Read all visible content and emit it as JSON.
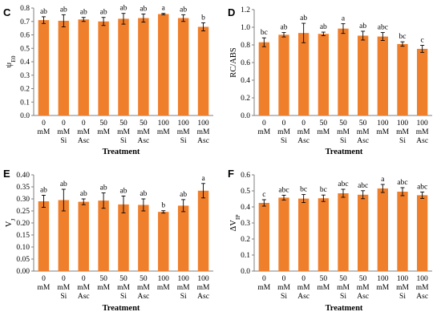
{
  "chart_data": [
    {
      "type": "bar",
      "panel": "C",
      "ylabel": "ψ",
      "ylabel_sub": "E0",
      "xlabel": "Treatment",
      "ylim": [
        0,
        0.8
      ],
      "yticks": [
        0,
        0.1,
        0.2,
        0.3,
        0.4,
        0.5,
        0.6,
        0.7,
        0.8
      ],
      "ytick_labels": [
        "0.0",
        "0.1",
        "0.2",
        "0.3",
        "0.4",
        "0.5",
        "0.6",
        "0.7",
        "0.8"
      ],
      "categories": [
        [
          "0",
          "mM"
        ],
        [
          "0",
          "mM",
          "Si"
        ],
        [
          "0",
          "mM",
          "Asc"
        ],
        [
          "50",
          "mM"
        ],
        [
          "50",
          "mM",
          "Si"
        ],
        [
          "50",
          "mM",
          "Asc"
        ],
        [
          "100",
          "mM"
        ],
        [
          "100",
          "mM",
          "Si"
        ],
        [
          "100",
          "mM",
          "Asc"
        ]
      ],
      "values": [
        0.71,
        0.705,
        0.715,
        0.7,
        0.72,
        0.725,
        0.755,
        0.725,
        0.66
      ],
      "errors": [
        0.025,
        0.045,
        0.015,
        0.03,
        0.04,
        0.03,
        0.005,
        0.025,
        0.03
      ],
      "letters": [
        "ab",
        "ab",
        "ab",
        "ab",
        "ab",
        "ab",
        "a",
        "ab",
        "b"
      ],
      "bar_color": "#f07f2c"
    },
    {
      "type": "bar",
      "panel": "D",
      "ylabel": "RC/ABS",
      "xlabel": "Treatment",
      "ylim": [
        0,
        1.2
      ],
      "yticks": [
        0,
        0.2,
        0.4,
        0.6,
        0.8,
        1.0,
        1.2
      ],
      "ytick_labels": [
        "0.0",
        "0.2",
        "0.4",
        "0.6",
        "0.8",
        "1.0",
        "1.2"
      ],
      "categories": [
        [
          "0",
          "mM"
        ],
        [
          "0",
          "mM",
          "Si"
        ],
        [
          "0",
          "mM",
          "Asc"
        ],
        [
          "50",
          "mM"
        ],
        [
          "50",
          "mM",
          "Si"
        ],
        [
          "50",
          "mM",
          "Asc"
        ],
        [
          "100",
          "mM"
        ],
        [
          "100",
          "mM",
          "Si"
        ],
        [
          "100",
          "mM",
          "Asc"
        ]
      ],
      "values": [
        0.83,
        0.915,
        0.935,
        0.925,
        0.985,
        0.905,
        0.895,
        0.81,
        0.755
      ],
      "errors": [
        0.05,
        0.025,
        0.11,
        0.02,
        0.055,
        0.05,
        0.045,
        0.025,
        0.04
      ],
      "letters": [
        "bc",
        "ab",
        "ab",
        "ab",
        "a",
        "ab",
        "abc",
        "bc",
        "c"
      ],
      "bar_color": "#f07f2c"
    },
    {
      "type": "bar",
      "panel": "E",
      "ylabel": "V",
      "ylabel_sub": "J",
      "xlabel": "Treatment",
      "ylim": [
        0,
        0.4
      ],
      "yticks": [
        0,
        0.05,
        0.1,
        0.15,
        0.2,
        0.25,
        0.3,
        0.35,
        0.4
      ],
      "ytick_labels": [
        "0.00",
        "0.05",
        "0.10",
        "0.15",
        "0.20",
        "0.25",
        "0.30",
        "0.35",
        "0.40"
      ],
      "categories": [
        [
          "0",
          "mM"
        ],
        [
          "0",
          "mM",
          "Si"
        ],
        [
          "0",
          "mM",
          "Asc"
        ],
        [
          "50",
          "mM"
        ],
        [
          "50",
          "mM",
          "Si"
        ],
        [
          "50",
          "mM",
          "Asc"
        ],
        [
          "100",
          "mM"
        ],
        [
          "100",
          "mM",
          "Si"
        ],
        [
          "100",
          "mM",
          "Asc"
        ]
      ],
      "values": [
        0.29,
        0.295,
        0.288,
        0.293,
        0.277,
        0.275,
        0.246,
        0.272,
        0.334
      ],
      "errors": [
        0.025,
        0.045,
        0.012,
        0.032,
        0.035,
        0.025,
        0.005,
        0.025,
        0.03
      ],
      "letters": [
        "ab",
        "ab",
        "ab",
        "ab",
        "ab",
        "ab",
        "b",
        "ab",
        "a"
      ],
      "bar_color": "#f07f2c"
    },
    {
      "type": "bar",
      "panel": "F",
      "ylabel": "ΔV",
      "ylabel_sub": "IP",
      "xlabel": "Treatment",
      "ylim": [
        0,
        0.6
      ],
      "yticks": [
        0,
        0.1,
        0.2,
        0.3,
        0.4,
        0.5,
        0.6
      ],
      "ytick_labels": [
        "0.0",
        "0.1",
        "0.2",
        "0.3",
        "0.4",
        "0.5",
        "0.6"
      ],
      "categories": [
        [
          "0",
          "mM"
        ],
        [
          "0",
          "mM",
          "Si"
        ],
        [
          "0",
          "mM",
          "Asc"
        ],
        [
          "50",
          "mM"
        ],
        [
          "50",
          "mM",
          "Si"
        ],
        [
          "50",
          "mM",
          "Asc"
        ],
        [
          "100",
          "mM"
        ],
        [
          "100",
          "mM",
          "Si"
        ],
        [
          "100",
          "mM",
          "Asc"
        ]
      ],
      "values": [
        0.425,
        0.458,
        0.452,
        0.454,
        0.485,
        0.476,
        0.515,
        0.495,
        0.473
      ],
      "errors": [
        0.02,
        0.015,
        0.025,
        0.02,
        0.025,
        0.025,
        0.025,
        0.025,
        0.02
      ],
      "letters": [
        "c",
        "abc",
        "bc",
        "bc",
        "abc",
        "abc",
        "a",
        "abc",
        "abc"
      ],
      "bar_color": "#f07f2c"
    }
  ]
}
